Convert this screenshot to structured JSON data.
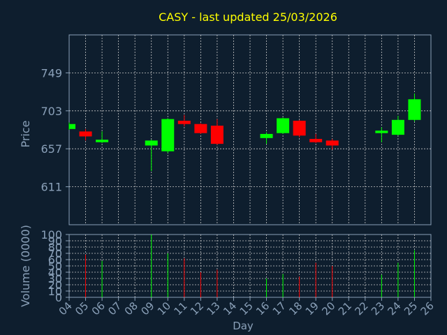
{
  "colors": {
    "background": "#0e1e2e",
    "plot_background": "#0e1e2e",
    "grid": "#c8c8c8",
    "axis": "#8aa0b8",
    "tick_text": "#8aa0b8",
    "title_text": "#ffff00",
    "label_text": "#8aa0b8",
    "up": "#00ff00",
    "down": "#ff0000"
  },
  "chart_data": [
    {
      "type": "candlestick",
      "title": "CASY - last updated 25/03/2026",
      "ylabel": "Price",
      "ylim": [
        565,
        795
      ],
      "yticks": [
        611,
        657,
        703,
        749
      ],
      "x_categories": [
        "04",
        "05",
        "06",
        "07",
        "08",
        "09",
        "10",
        "11",
        "12",
        "13",
        "14",
        "15",
        "16",
        "17",
        "18",
        "19",
        "20",
        "21",
        "22",
        "23",
        "24",
        "25",
        "26"
      ],
      "candles": [
        {
          "day": "04",
          "open": 681,
          "close": 687,
          "high": 689,
          "low": 680
        },
        {
          "day": "05",
          "open": 678,
          "close": 672,
          "high": 681,
          "low": 667
        },
        {
          "day": "06",
          "open": 665,
          "close": 668,
          "high": 678,
          "low": 664
        },
        {
          "day": "09",
          "open": 661,
          "close": 667,
          "high": 668,
          "low": 630
        },
        {
          "day": "10",
          "open": 654,
          "close": 693,
          "high": 694,
          "low": 652
        },
        {
          "day": "11",
          "open": 691,
          "close": 687,
          "high": 698,
          "low": 684
        },
        {
          "day": "12",
          "open": 687,
          "close": 676,
          "high": 688,
          "low": 675
        },
        {
          "day": "13",
          "open": 685,
          "close": 663,
          "high": 693,
          "low": 662
        },
        {
          "day": "16",
          "open": 670,
          "close": 675,
          "high": 677,
          "low": 663
        },
        {
          "day": "17",
          "open": 676,
          "close": 694,
          "high": 695,
          "low": 675
        },
        {
          "day": "18",
          "open": 691,
          "close": 673,
          "high": 692,
          "low": 671
        },
        {
          "day": "19",
          "open": 669,
          "close": 665,
          "high": 675,
          "low": 664
        },
        {
          "day": "20",
          "open": 667,
          "close": 661,
          "high": 669,
          "low": 656
        },
        {
          "day": "23",
          "open": 676,
          "close": 679,
          "high": 683,
          "low": 665
        },
        {
          "day": "24",
          "open": 674,
          "close": 692,
          "high": 697,
          "low": 673
        },
        {
          "day": "25",
          "open": 692,
          "close": 717,
          "high": 724,
          "low": 690
        }
      ]
    },
    {
      "type": "bar",
      "ylabel": "Volume (0000)",
      "xlabel": "Day",
      "ylim": [
        0,
        100
      ],
      "yticks": [
        0,
        10,
        20,
        30,
        40,
        50,
        60,
        70,
        80,
        90,
        100
      ],
      "categories": [
        "04",
        "05",
        "06",
        "09",
        "10",
        "11",
        "12",
        "13",
        "16",
        "17",
        "18",
        "19",
        "20",
        "23",
        "24",
        "25"
      ],
      "values": [
        0,
        68,
        58,
        100,
        70,
        62,
        40,
        44,
        30,
        37,
        33,
        55,
        50,
        36,
        55,
        75
      ],
      "directions": [
        "up",
        "down",
        "up",
        "up",
        "up",
        "down",
        "down",
        "down",
        "up",
        "up",
        "down",
        "down",
        "down",
        "up",
        "up",
        "up"
      ]
    }
  ]
}
